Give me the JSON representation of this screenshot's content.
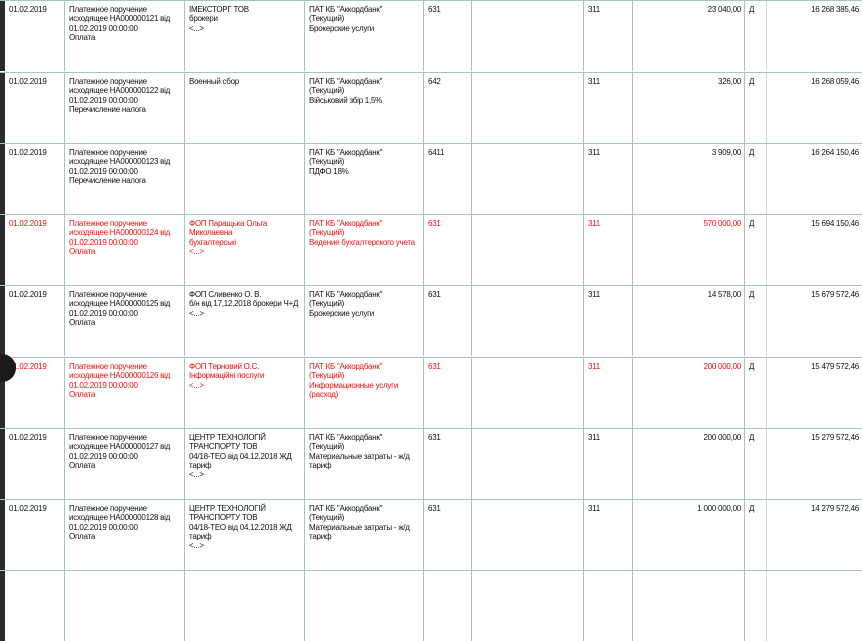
{
  "columns_note_hidden": null,
  "colors": {
    "highlight_text": "#ee1111",
    "grid": "#a7c6bc"
  },
  "rows": [
    {
      "date": "01.02.2019",
      "document": "Платежное поручение\nисходящее НА000000121 від\n01.02.2019 00:00:00\nОплата",
      "counterparty": "ІМЕКСТОРГ ТОВ\nброкери\n<...>",
      "bank": "ПАТ КБ \"Аккордбанк\"\n(Текущий)\nБрокерские услуги",
      "acc_dt": "631",
      "sub": "",
      "acc_kt": "311",
      "amount": "23 040,00",
      "dc": "Д",
      "balance": "16 268 385,46",
      "red": false
    },
    {
      "date": "01.02.2019",
      "document": "Платежное поручение\nисходящее НА000000122 від\n01.02.2019 00:00:00\nПеречисление налога",
      "counterparty": "Военный сбор",
      "bank": "ПАТ КБ \"Аккордбанк\"\n(Текущий)\nВійськовий збір 1,5%",
      "acc_dt": "642",
      "sub": "",
      "acc_kt": "311",
      "amount": "326,00",
      "dc": "Д",
      "balance": "16 268 059,46",
      "red": false
    },
    {
      "date": "01.02.2019",
      "document": "Платежное поручение\nисходящее НА000000123 від\n01.02.2019 00:00:00\nПеречисление налога",
      "counterparty": "",
      "bank": "ПАТ КБ \"Аккордбанк\"\n(Текущий)\nПДФО 18%",
      "acc_dt": "6411",
      "sub": "",
      "acc_kt": "311",
      "amount": "3 909,00",
      "dc": "Д",
      "balance": "16 264 150,46",
      "red": false
    },
    {
      "date": "01.02.2019",
      "document": "Платежное поручение\nисходящее НА000000124 від\n01.02.2019 00:00:00\nОплата",
      "counterparty": "ФОП Паращька Ольга\nМиколаевна\nбухгалтерські\n<...>",
      "bank": "ПАТ КБ \"Аккордбанк\"\n(Текущий)\nВедение бухгалтерского учета",
      "acc_dt": "631",
      "sub": "",
      "acc_kt": "311",
      "amount": "570 000,00",
      "dc": "Д",
      "balance": "15 694 150,46",
      "red": true
    },
    {
      "date": "01.02.2019",
      "document": "Платежное поручение\nисходящее НА000000125 від\n01.02.2019 00:00:00\nОплата",
      "counterparty": "ФОП Сливенко О. В.\nб/н  від 17,12,2018 брокери Ч+Д\n<...>",
      "bank": "ПАТ КБ \"Аккордбанк\"\n(Текущий)\nБрокерские услуги",
      "acc_dt": "631",
      "sub": "",
      "acc_kt": "311",
      "amount": "14 578,00",
      "dc": "Д",
      "balance": "15 679 572,46",
      "red": false
    },
    {
      "date": "01.02.2019",
      "document": "Платежное поручение\nисходящее НА000000126 від\n01.02.2019 00:00:00\nОплата",
      "counterparty": "ФОП Терновий О.С.\nІнформаційні послуги\n<...>",
      "bank": "ПАТ КБ \"Аккордбанк\"\n(Текущий)\nИнформационные услуги\n(расход)",
      "acc_dt": "631",
      "sub": "",
      "acc_kt": "311",
      "amount": "200 000,00",
      "dc": "Д",
      "balance": "15 479 572,46",
      "red": true
    },
    {
      "date": "01.02.2019",
      "document": "Платежное поручение\nисходящее НА000000127 від\n01.02.2019 00:00:00\nОплата",
      "counterparty": "ЦЕНТР ТЕХНОЛОГІЙ\nТРАНСПОРТУ ТОВ\n04/18-ТЕО від 04.12.2018 ЖД\nтариф\n<...>",
      "bank": "ПАТ КБ \"Аккордбанк\"\n(Текущий)\nМатериальные затраты - ж/д\nтариф",
      "acc_dt": "631",
      "sub": "",
      "acc_kt": "311",
      "amount": "200 000,00",
      "dc": "Д",
      "balance": "15 279 572,46",
      "red": false
    },
    {
      "date": "01.02.2019",
      "document": "Платежное поручение\nисходящее НА000000128 від\n01.02.2019 00:00:00\nОплата",
      "counterparty": "ЦЕНТР ТЕХНОЛОГІЙ\nТРАНСПОРТУ ТОВ\n04/18-ТЕО від 04.12.2018 ЖД\nтариф\n<...>",
      "bank": "ПАТ КБ \"Аккордбанк\"\n(Текущий)\nМатериальные затраты - ж/д\nтариф",
      "acc_dt": "631",
      "sub": "",
      "acc_kt": "311",
      "amount": "1 000 000,00",
      "dc": "Д",
      "balance": "14 279 572,46",
      "red": false
    }
  ]
}
